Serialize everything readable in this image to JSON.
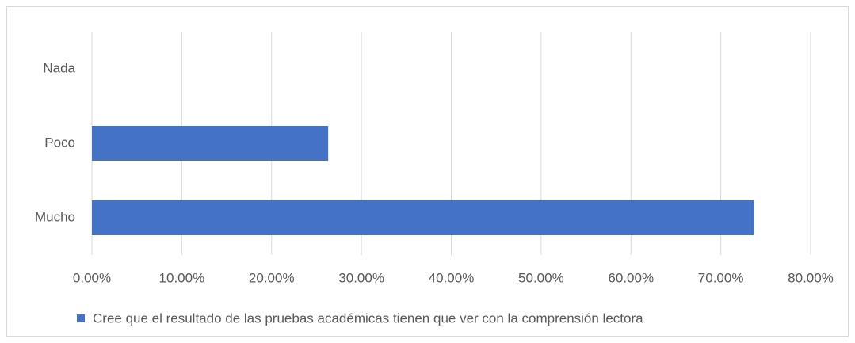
{
  "chart_data": {
    "type": "bar",
    "orientation": "horizontal",
    "categories": [
      "Nada",
      "Poco",
      "Mucho"
    ],
    "series": [
      {
        "name": "Cree que el resultado de las pruebas académicas tienen que ver con la comprensión lectora",
        "color": "#4472c4",
        "values": [
          0,
          26.3,
          73.7
        ]
      }
    ],
    "xlim": [
      0,
      80
    ],
    "xticks": [
      {
        "value": 0,
        "label": "0.00%"
      },
      {
        "value": 10,
        "label": "10.00%"
      },
      {
        "value": 20,
        "label": "20.00%"
      },
      {
        "value": 30,
        "label": "30.00%"
      },
      {
        "value": 40,
        "label": "40.00%"
      },
      {
        "value": 50,
        "label": "50.00%"
      },
      {
        "value": 60,
        "label": "60.00%"
      },
      {
        "value": 70,
        "label": "70.00%"
      },
      {
        "value": 80,
        "label": "80.00%"
      }
    ],
    "grid": true,
    "legend": "bottom"
  }
}
